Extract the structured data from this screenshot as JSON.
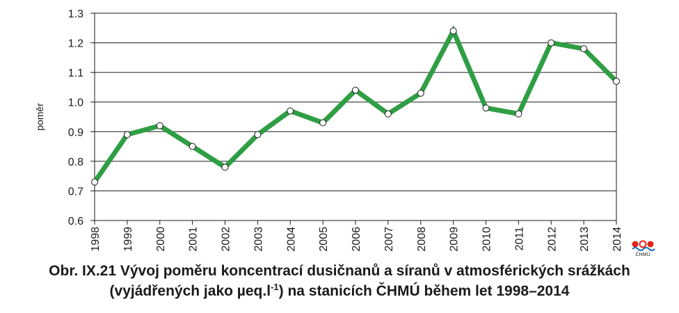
{
  "chart_data": {
    "type": "line",
    "ylabel": "poměr",
    "xlabel": "",
    "ylim": [
      0.6,
      1.3
    ],
    "yticks": [
      "0.6",
      "0.7",
      "0.8",
      "0.9",
      "1.0",
      "1.1",
      "1.2",
      "1.3"
    ],
    "x": [
      "1998",
      "1999",
      "2000",
      "2001",
      "2002",
      "2003",
      "2004",
      "2005",
      "2006",
      "2007",
      "2008",
      "2009",
      "2010",
      "2011",
      "2012",
      "2013",
      "2014"
    ],
    "series": [
      {
        "values": [
          0.73,
          0.89,
          0.92,
          0.85,
          0.78,
          0.89,
          0.97,
          0.93,
          1.04,
          0.96,
          1.03,
          1.24,
          0.98,
          0.96,
          1.2,
          1.18,
          1.07
        ]
      }
    ],
    "grid": "horizontal",
    "line_color": "#2f9e44"
  },
  "caption": {
    "line1": "Obr. IX.21  Vývoj poměru koncentrací dusičnanů a síranů v atmosférických srážkách",
    "line2_prefix": "(vyjádřených jako µeq.l",
    "line2_sup": "-1",
    "line2_suffix": ") na stanicích ČHMÚ během let 1998–2014"
  },
  "logo": {
    "text": "ČHMÚ"
  }
}
